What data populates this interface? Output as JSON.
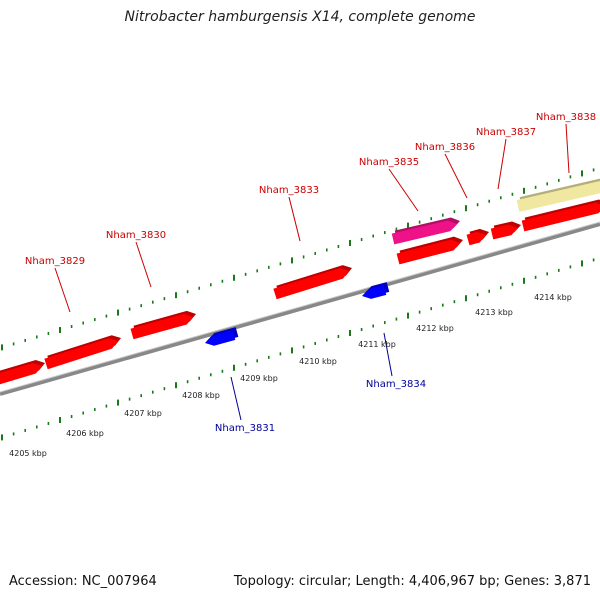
{
  "title": "Nitrobacter hamburgensis X14, complete genome",
  "footer": {
    "accession": "Accession: NC_007964",
    "summary": "Topology: circular; Length: 4,406,967 bp; Genes: 3,871"
  },
  "colors": {
    "forward_gene": "#ff0000",
    "reverse_gene": "#0000ff",
    "rna_gene": "#ee1188",
    "other_feature": "#f0e8a0",
    "backbone": "#888888",
    "tick": "#1a7a1a",
    "forward_label": "#cc0000",
    "reverse_label": "#000099"
  },
  "kbp_labels": [
    "4205 kbp",
    "4206 kbp",
    "4207 kbp",
    "4208 kbp",
    "4209 kbp",
    "4210 kbp",
    "4211 kbp",
    "4212 kbp",
    "4213 kbp",
    "4214 kbp"
  ],
  "forward_labels": [
    "Nham_3829",
    "Nham_3830",
    "Nham_3833",
    "Nham_3835",
    "Nham_3836",
    "Nham_3837",
    "Nham_3838"
  ],
  "reverse_labels": [
    "Nham_3831",
    "Nham_3834"
  ]
}
